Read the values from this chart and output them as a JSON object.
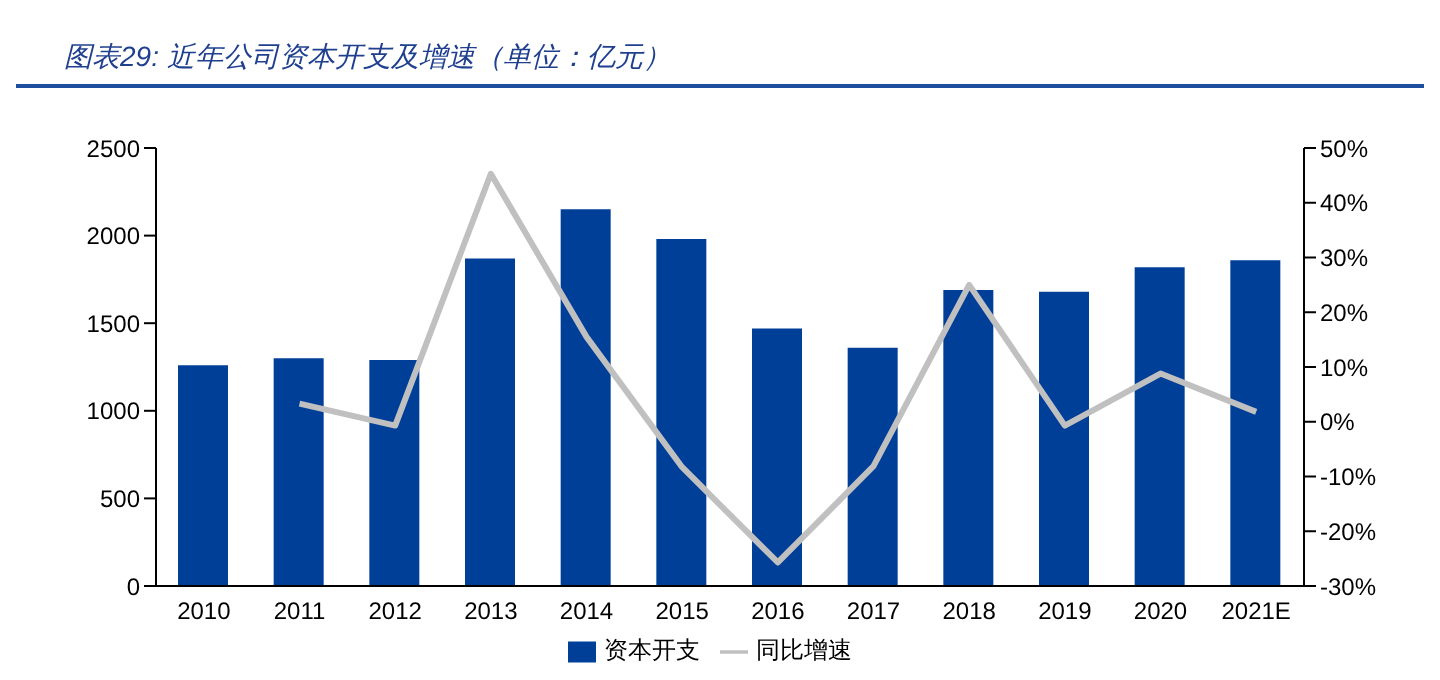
{
  "chart_data": {
    "type": "bar",
    "title": "图表29: 近年公司资本开支及增速（单位：亿元）",
    "categories": [
      "2010",
      "2011",
      "2012",
      "2013",
      "2014",
      "2015",
      "2016",
      "2017",
      "2018",
      "2019",
      "2020",
      "2021E"
    ],
    "series": [
      {
        "name": "资本开支",
        "color": "#003f98",
        "values": [
          1260,
          1300,
          1290,
          1870,
          2150,
          1980,
          1470,
          1360,
          1690,
          1680,
          1820,
          1860
        ]
      },
      {
        "name": "同比增速",
        "type": "line",
        "axis": "y2",
        "color": "#c0c0c0",
        "values": [
          null,
          3.3,
          -0.7,
          45.3,
          15.5,
          -8.3,
          -25.7,
          -8.1,
          25,
          -0.7,
          8.8,
          1.8
        ]
      }
    ],
    "ylim": [
      0,
      2500
    ],
    "yticks": [
      0,
      500,
      1000,
      1500,
      2000,
      2500
    ],
    "y2lim": [
      -30,
      50
    ],
    "y2ticks": [
      {
        "value": -30,
        "label": "-30%"
      },
      {
        "value": -20,
        "label": "-20%"
      },
      {
        "value": -10,
        "label": "-10%"
      },
      {
        "value": 0,
        "label": "0%"
      },
      {
        "value": 10,
        "label": "10%"
      },
      {
        "value": 20,
        "label": "20%"
      },
      {
        "value": 30,
        "label": "30%"
      },
      {
        "value": 40,
        "label": "40%"
      },
      {
        "value": 50,
        "label": "50%"
      }
    ],
    "legend": "bottom",
    "marker": "none",
    "grid": false
  }
}
